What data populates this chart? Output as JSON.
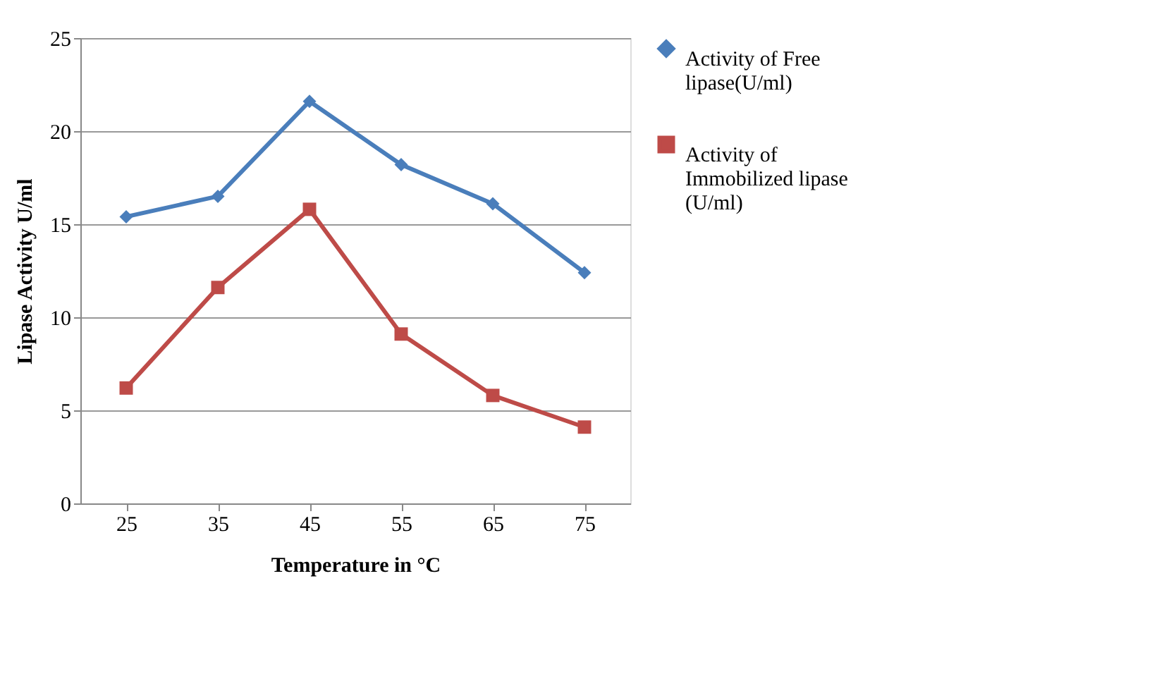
{
  "chart_data": {
    "type": "line",
    "xlabel": "Temperature in °C",
    "ylabel": "Lipase Activity U/ml",
    "categories": [
      "25",
      "35",
      "45",
      "55",
      "65",
      "75"
    ],
    "series": [
      {
        "name": "Activity of Free lipase(U/ml)",
        "color": "#4a7ebb",
        "marker": "diamond",
        "values": [
          15.4,
          16.5,
          21.6,
          18.2,
          16.1,
          12.4
        ]
      },
      {
        "name": "Activity of Immobilized lipase (U/ml)",
        "color": "#be4b48",
        "marker": "square",
        "values": [
          6.2,
          11.6,
          15.8,
          9.1,
          5.8,
          4.1
        ]
      }
    ],
    "ylim": [
      0,
      25
    ],
    "yticks": [
      0,
      5,
      10,
      15,
      20,
      25
    ],
    "grid": "y",
    "legend": "right",
    "line_style": "solid"
  }
}
